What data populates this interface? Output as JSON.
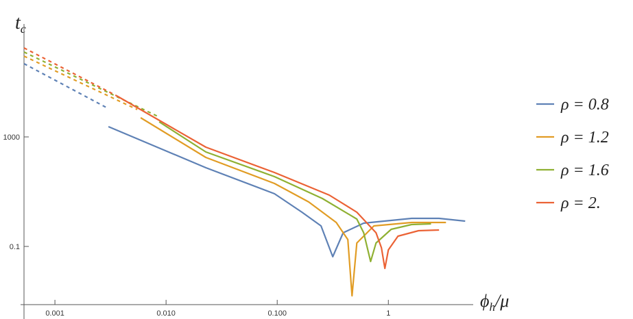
{
  "chart_data": {
    "type": "line",
    "ylabel": {
      "main": "t",
      "sub": "c"
    },
    "xlabel": {
      "main": "ϕ",
      "sub": "h",
      "rest": "/μ"
    },
    "xscale": "log",
    "yscale": "log",
    "xlim": [
      0.000527,
      5.8
    ],
    "ylim": [
      0.00075,
      7500000
    ],
    "xticks": [
      0.001,
      {
        "value": 0.01,
        "label": "0.010"
      },
      {
        "value": 0.1,
        "label": "0.100"
      },
      1
    ],
    "yticks": [
      0.1,
      1000
    ],
    "legend": "right",
    "series": [
      {
        "name": "ρ = 0.8",
        "color": "#5e81b5",
        "segments": [
          {
            "style": "dashed",
            "x": [
              0.000527,
              0.0029
            ],
            "values": [
              473000,
              11900
            ]
          },
          {
            "style": "solid",
            "x": [
              0.00303,
              0.0228,
              0.0944,
              0.167,
              0.248,
              0.316,
              0.392,
              0.6,
              1.62,
              2.86,
              4.91
            ],
            "values": [
              2370,
              75,
              8.41,
              1.78,
              0.562,
              0.0422,
              0.316,
              0.708,
              1.06,
              1.06,
              0.841
            ]
          }
        ]
      },
      {
        "name": "ρ = 1.2",
        "color": "#e19c24",
        "segments": [
          {
            "style": "dashed",
            "x": [
              0.000527,
              0.0055
            ],
            "values": [
              890000,
              10000
            ]
          },
          {
            "style": "solid",
            "x": [
              0.00591,
              0.0228,
              0.0944,
              0.192,
              0.34,
              0.432,
              0.471,
              0.52,
              0.741,
              1.62,
              3.3
            ],
            "values": [
              5010,
              178,
              20,
              4.22,
              0.75,
              0.178,
              0.00158,
              0.133,
              0.562,
              0.75,
              0.75
            ]
          }
        ]
      },
      {
        "name": "ρ = 1.6",
        "color": "#8fb032",
        "segments": [
          {
            "style": "dashed",
            "x": [
              0.000527,
              0.00843
            ],
            "values": [
              1260000,
              5620
            ]
          },
          {
            "style": "solid",
            "x": [
              0.00867,
              0.0228,
              0.0944,
              0.255,
              0.52,
              0.6,
              0.692,
              0.775,
              1.06,
              1.62,
              2.42
            ],
            "values": [
              3550,
              282,
              35.5,
              5.62,
              1,
              0.316,
              0.0282,
              0.133,
              0.422,
              0.631,
              0.668
            ]
          }
        ]
      },
      {
        "name": "ρ = 2.",
        "color": "#eb6235",
        "segments": [
          {
            "style": "dashed",
            "x": [
              0.000527,
              0.0036
            ],
            "values": [
              1780000,
              31600
            ]
          },
          {
            "style": "solid",
            "x": [
              0.0036,
              0.0228,
              0.0944,
              0.294,
              0.52,
              0.775,
              0.867,
              0.931,
              1.0,
              1.22,
              1.87,
              2.86
            ],
            "values": [
              31600,
              422,
              50,
              7.5,
              1.78,
              0.316,
              0.089,
              0.0158,
              0.075,
              0.237,
              0.376,
              0.398
            ]
          }
        ]
      }
    ]
  }
}
